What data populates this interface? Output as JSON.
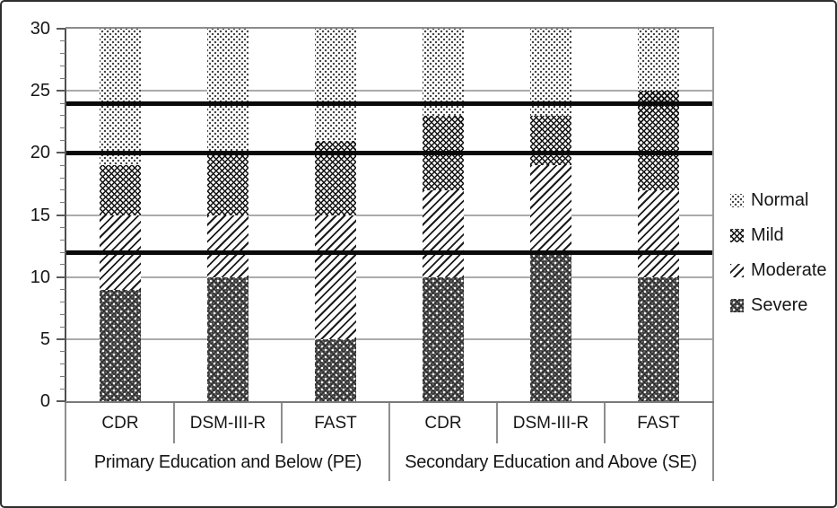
{
  "chart_data": {
    "type": "bar",
    "stacked": true,
    "title": "",
    "xlabel": "",
    "ylabel": "",
    "ylim": [
      0,
      30
    ],
    "yticks": [
      0,
      5,
      10,
      15,
      20,
      25,
      30
    ],
    "minor_tick_step": 1,
    "reference_lines": [
      12,
      20,
      24
    ],
    "grid": "horizontal",
    "legend_position": "right",
    "groups": [
      {
        "label": "Primary Education and Below (PE)",
        "categories": [
          "CDR",
          "DSM-III-R",
          "FAST"
        ]
      },
      {
        "label": "Secondary Education and Above (SE)",
        "categories": [
          "CDR",
          "DSM-III-R",
          "FAST"
        ]
      }
    ],
    "series": [
      {
        "name": "Severe",
        "pattern": "dark-dots",
        "values": [
          9,
          10,
          5,
          10,
          12,
          10
        ]
      },
      {
        "name": "Moderate",
        "pattern": "diagonal-lines",
        "values": [
          6,
          5,
          10,
          7,
          7,
          7
        ]
      },
      {
        "name": "Mild",
        "pattern": "crosshatch",
        "values": [
          4,
          5,
          6,
          6,
          4,
          8
        ]
      },
      {
        "name": "Normal",
        "pattern": "light-dots",
        "values": [
          11,
          10,
          9,
          7,
          7,
          5
        ]
      }
    ],
    "legend": [
      {
        "label": "Normal",
        "pattern": "light-dots"
      },
      {
        "label": "Mild",
        "pattern": "crosshatch"
      },
      {
        "label": "Moderate",
        "pattern": "diagonal-lines"
      },
      {
        "label": "Severe",
        "pattern": "dark-dots"
      }
    ],
    "colors": {
      "ink": "#000000",
      "reference_line": "#0a0a0a",
      "gridline": "#ababab",
      "axis": "#4d4d4d",
      "severe_fill": "#6a6a6a",
      "background": "#ffffff"
    }
  }
}
